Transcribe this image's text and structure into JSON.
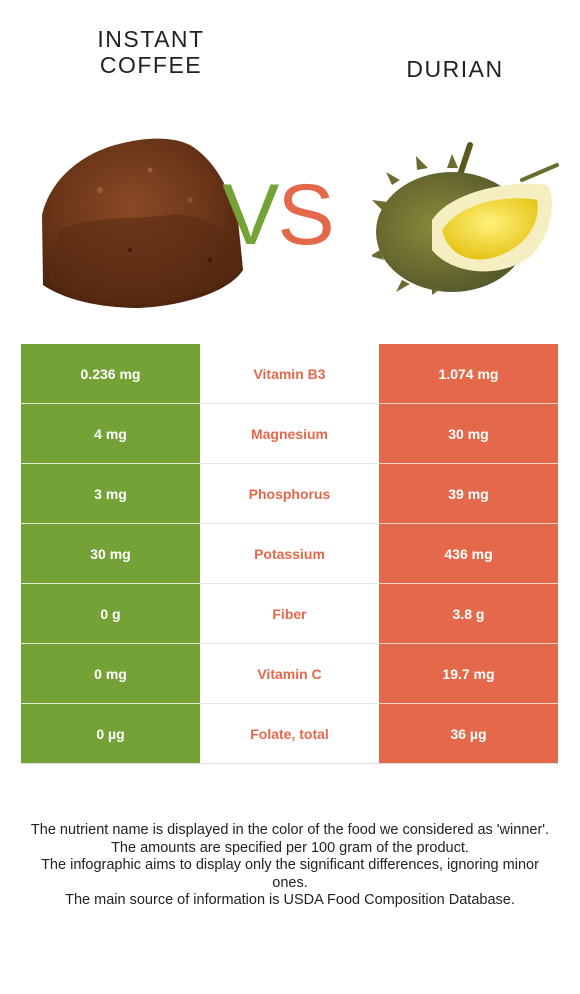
{
  "header": {
    "left_food": "INSTANT COFFEE",
    "right_food": "DURIAN",
    "vs_v": "V",
    "vs_s": "S"
  },
  "colors": {
    "left_accent": "#74a236",
    "right_accent": "#e4694a"
  },
  "rows": [
    {
      "nutrient": "Vitamin B3",
      "left": "0.236 mg",
      "right": "1.074 mg",
      "winner": "right"
    },
    {
      "nutrient": "Magnesium",
      "left": "4 mg",
      "right": "30 mg",
      "winner": "right"
    },
    {
      "nutrient": "Phosphorus",
      "left": "3 mg",
      "right": "39 mg",
      "winner": "right"
    },
    {
      "nutrient": "Potassium",
      "left": "30 mg",
      "right": "436 mg",
      "winner": "right"
    },
    {
      "nutrient": "Fiber",
      "left": "0 g",
      "right": "3.8 g",
      "winner": "right"
    },
    {
      "nutrient": "Vitamin C",
      "left": "0 mg",
      "right": "19.7 mg",
      "winner": "right"
    },
    {
      "nutrient": "Folate, total",
      "left": "0 µg",
      "right": "36 µg",
      "winner": "right"
    }
  ],
  "footer": [
    "The nutrient name is displayed in the color of the food we considered as 'winner'.",
    "The amounts are specified per 100 gram of the product.",
    "The infographic aims to display only the significant differences, ignoring minor ones.",
    "The main source of information is USDA Food Composition Database."
  ]
}
